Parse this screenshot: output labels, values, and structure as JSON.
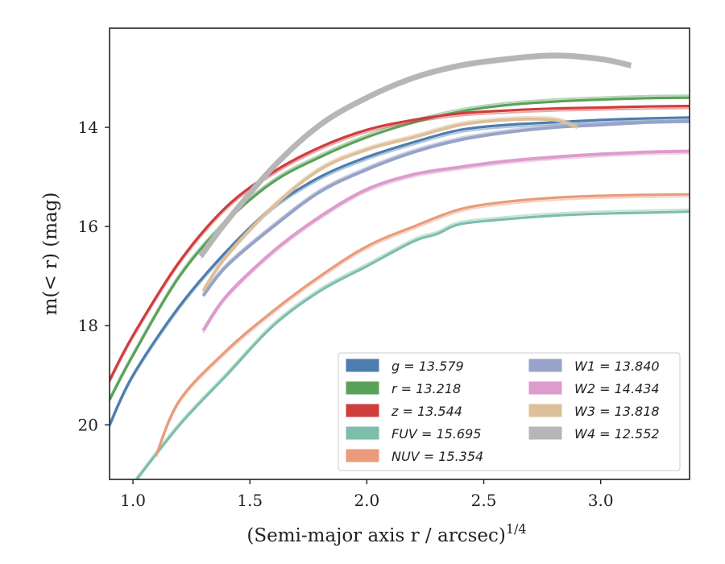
{
  "chart_data": {
    "type": "line",
    "xlabel": "(Semi-major axis r / arcsec)",
    "xlabel_sup": "1/4",
    "ylabel": "m(< r) (mag)",
    "xlim": [
      0.9,
      3.38
    ],
    "ylim": [
      21.1,
      12.0
    ],
    "y_inverted": true,
    "xticks": [
      1.0,
      1.5,
      2.0,
      2.5,
      3.0
    ],
    "xtick_labels": [
      "1.0",
      "1.5",
      "2.0",
      "2.5",
      "3.0"
    ],
    "yticks": [
      14,
      16,
      18,
      20
    ],
    "ytick_labels": [
      "14",
      "16",
      "18",
      "20"
    ],
    "grid": false,
    "legend_position": "lower-right",
    "series": [
      {
        "name": "g",
        "legend": "g = 13.579",
        "color": "#4c7dae",
        "x": [
          0.9,
          1.0,
          1.2,
          1.4,
          1.6,
          1.8,
          2.0,
          2.2,
          2.4,
          2.6,
          2.8,
          3.0,
          3.2,
          3.38
        ],
        "y": [
          20.0,
          19.0,
          17.6,
          16.5,
          15.6,
          15.0,
          14.6,
          14.3,
          14.05,
          13.95,
          13.9,
          13.85,
          13.82,
          13.8
        ]
      },
      {
        "name": "r",
        "legend": "r = 13.218",
        "color": "#5aa25a",
        "x": [
          0.9,
          1.0,
          1.2,
          1.4,
          1.6,
          1.8,
          2.0,
          2.2,
          2.4,
          2.6,
          2.8,
          3.0,
          3.2,
          3.38
        ],
        "y": [
          19.5,
          18.6,
          17.0,
          15.9,
          15.1,
          14.6,
          14.2,
          13.9,
          13.68,
          13.55,
          13.48,
          13.44,
          13.41,
          13.4
        ]
      },
      {
        "name": "z",
        "legend": "z = 13.544",
        "color": "#d03d3d",
        "x": [
          0.9,
          1.0,
          1.2,
          1.4,
          1.6,
          1.8,
          2.0,
          2.2,
          2.4,
          2.6,
          2.8,
          3.0,
          3.2,
          3.38
        ],
        "y": [
          19.1,
          18.2,
          16.7,
          15.6,
          14.9,
          14.4,
          14.05,
          13.85,
          13.72,
          13.66,
          13.62,
          13.6,
          13.58,
          13.57
        ]
      },
      {
        "name": "FUV",
        "legend": "FUV = 15.695",
        "color": "#7dbeab",
        "x": [
          1.0,
          1.2,
          1.4,
          1.6,
          1.8,
          2.0,
          2.2,
          2.3,
          2.4,
          2.6,
          2.8,
          3.0,
          3.2,
          3.38
        ],
        "y": [
          21.2,
          20.0,
          19.0,
          18.0,
          17.3,
          16.8,
          16.3,
          16.15,
          15.95,
          15.85,
          15.78,
          15.74,
          15.72,
          15.7
        ]
      },
      {
        "name": "NUV",
        "legend": "NUV = 15.354",
        "color": "#e99b7a",
        "x": [
          1.1,
          1.2,
          1.4,
          1.6,
          1.8,
          2.0,
          2.2,
          2.4,
          2.6,
          2.8,
          3.0,
          3.2,
          3.38
        ],
        "y": [
          20.6,
          19.5,
          18.5,
          17.7,
          17.0,
          16.4,
          16.0,
          15.65,
          15.5,
          15.42,
          15.38,
          15.36,
          15.35
        ]
      },
      {
        "name": "W1",
        "legend": "W1 = 13.840",
        "color": "#97a3c8",
        "x": [
          1.3,
          1.4,
          1.6,
          1.8,
          2.0,
          2.2,
          2.4,
          2.6,
          2.8,
          3.0,
          3.2,
          3.38
        ],
        "y": [
          17.4,
          16.8,
          16.0,
          15.3,
          14.85,
          14.5,
          14.25,
          14.1,
          14.0,
          13.95,
          13.9,
          13.88
        ]
      },
      {
        "name": "W2",
        "legend": "W2 = 14.434",
        "color": "#dd9ccb",
        "x": [
          1.3,
          1.4,
          1.6,
          1.8,
          2.0,
          2.2,
          2.4,
          2.6,
          2.8,
          3.0,
          3.2,
          3.38
        ],
        "y": [
          18.1,
          17.4,
          16.5,
          15.8,
          15.25,
          14.95,
          14.8,
          14.68,
          14.6,
          14.54,
          14.5,
          14.48
        ]
      },
      {
        "name": "W3",
        "legend": "W3 = 13.818",
        "color": "#ddc09a",
        "x": [
          1.3,
          1.4,
          1.6,
          1.8,
          2.0,
          2.2,
          2.4,
          2.6,
          2.8,
          2.9
        ],
        "y": [
          17.3,
          16.6,
          15.6,
          14.85,
          14.45,
          14.2,
          13.95,
          13.85,
          13.85,
          14.0
        ]
      },
      {
        "name": "W4",
        "legend": "W4 = 12.552",
        "color": "#b6b6b6",
        "x": [
          1.29,
          1.4,
          1.6,
          1.8,
          2.0,
          2.2,
          2.4,
          2.6,
          2.8,
          3.0,
          3.13
        ],
        "y": [
          16.6,
          15.9,
          14.8,
          13.95,
          13.4,
          13.0,
          12.75,
          12.62,
          12.55,
          12.62,
          12.75
        ]
      }
    ]
  }
}
